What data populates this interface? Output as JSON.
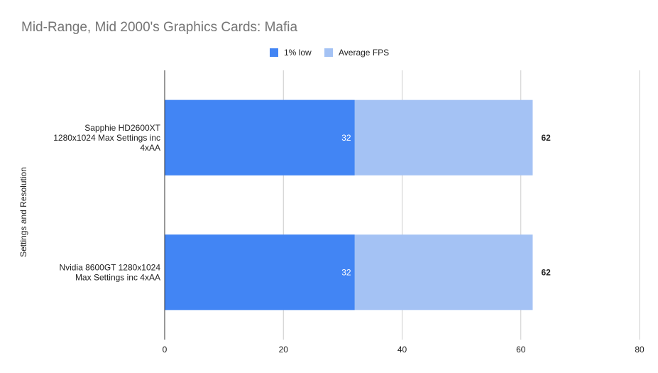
{
  "chart_data": {
    "type": "bar",
    "orientation": "horizontal",
    "stacked": false,
    "overlapping": true,
    "title": "Mid-Range, Mid 2000's Graphics Cards: Mafia",
    "ylabel": "Settings and Resolution",
    "xlabel": "",
    "xlim": [
      0,
      80
    ],
    "xticks": [
      0,
      20,
      40,
      60,
      80
    ],
    "grid": true,
    "legend_position": "top",
    "categories": [
      [
        "Sapphie HD2600XT",
        "1280x1024 Max Settings inc",
        "4xAA"
      ],
      [
        "Nvidia 8600GT 1280x1024",
        "Max Settings inc  4xAA"
      ]
    ],
    "series": [
      {
        "name": "1% low",
        "color": "#4285f4",
        "values": [
          32,
          32
        ],
        "labels": [
          "32",
          "32"
        ]
      },
      {
        "name": "Average FPS",
        "color": "#a4c2f4",
        "values": [
          62,
          62
        ],
        "labels": [
          "62",
          "62"
        ]
      }
    ]
  }
}
